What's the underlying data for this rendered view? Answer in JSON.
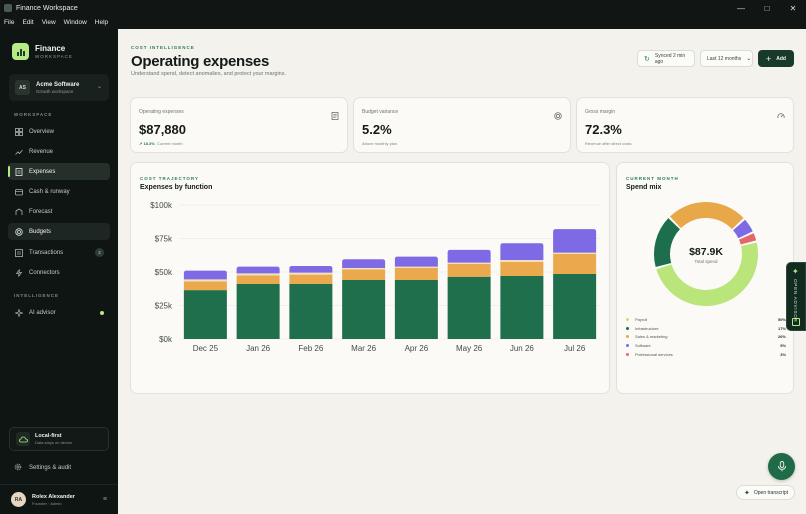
{
  "window": {
    "title": "Finance Workspace"
  },
  "menu": [
    "File",
    "Edit",
    "View",
    "Window",
    "Help"
  ],
  "brand": {
    "name": "Finance",
    "tagline": "WORKSPACE"
  },
  "org": {
    "initials": "AS",
    "name": "Acme Software",
    "plan": "Growth workspace"
  },
  "sidebar": {
    "workspace_label": "WORKSPACE",
    "items": [
      {
        "label": "Overview",
        "icon": "dashboard-icon"
      },
      {
        "label": "Revenue",
        "icon": "trend-icon"
      },
      {
        "label": "Expenses",
        "icon": "receipt-icon"
      },
      {
        "label": "Cash & runway",
        "icon": "wallet-icon"
      },
      {
        "label": "Forecast",
        "icon": "forecast-icon"
      },
      {
        "label": "Budgets",
        "icon": "target-icon"
      },
      {
        "label": "Transactions",
        "icon": "list-icon",
        "badge": "2"
      },
      {
        "label": "Connectors",
        "icon": "plug-icon"
      }
    ],
    "intelligence_label": "INTELLIGENCE",
    "ai_item": {
      "label": "AI advisor",
      "icon": "sparkle-icon"
    },
    "local_first": {
      "title": "Local-first",
      "subtitle": "Data stays on device"
    },
    "settings_label": "Settings & audit",
    "user": {
      "initials": "RA",
      "name": "Rolex Alexander",
      "role": "Founder · Admin"
    }
  },
  "header": {
    "eyebrow": "COST INTELLIGENCE",
    "title": "Operating expenses",
    "subtitle": "Understand spend, detect anomalies, and protect your margins.",
    "sync_label": "Synced 2 min ago",
    "range_label": "Last 12 months",
    "add_label": "Add"
  },
  "kpis": [
    {
      "label": "Operating expenses",
      "value": "$87,880",
      "delta": "18.3%",
      "note": "Current month",
      "icon": "document-icon"
    },
    {
      "label": "Budget variance",
      "value": "5.2%",
      "note": "Above monthly plan",
      "icon": "target-icon"
    },
    {
      "label": "Gross margin",
      "value": "72.3%",
      "note": "Revenue after direct costs",
      "icon": "gauge-icon"
    }
  ],
  "trajectory": {
    "eyebrow": "COST TRAJECTORY",
    "title": "Expenses by function"
  },
  "mix": {
    "eyebrow": "CURRENT MONTH",
    "title": "Spend mix",
    "center_value": "$87.9K",
    "center_label": "Total spend",
    "legend": [
      {
        "name": "Payroll",
        "pct": "50%",
        "color": "#b9e57b"
      },
      {
        "name": "Infrastructure",
        "pct": "17%",
        "color": "#1d6e4c"
      },
      {
        "name": "Sales & marketing",
        "pct": "26%",
        "color": "#e8a84a"
      },
      {
        "name": "Software",
        "pct": "5%",
        "color": "#7d6ae4"
      },
      {
        "name": "Professional services",
        "pct": "3%",
        "color": "#e5676b"
      }
    ]
  },
  "advisor_tab": "OPEN ADVISOR",
  "transcript_label": "Open transcript",
  "colors": {
    "accent": "#b5ea84",
    "primary": "#173a2b",
    "payroll": "#1d6e4c",
    "sales": "#e8a84a",
    "software": "#7d6ae4"
  },
  "chart_data": [
    {
      "type": "bar",
      "stacked": true,
      "categories": [
        "Dec 25",
        "Jan 26",
        "Feb 26",
        "Mar 26",
        "Apr 26",
        "May 26",
        "Jun 26",
        "Jul 26"
      ],
      "ylim": [
        0,
        100000
      ],
      "yticks": [
        "$0k",
        "$25k",
        "$50k",
        "$75k",
        "$100k"
      ],
      "ytick_values": [
        0,
        25000,
        50000,
        75000,
        100000
      ],
      "series": [
        {
          "color": "#1f6e4c",
          "values": [
            36500,
            41000,
            41000,
            44000,
            44000,
            46500,
            47000,
            48500
          ]
        },
        {
          "color": "#e9a94c",
          "values": [
            6500,
            6500,
            7000,
            8000,
            9000,
            9500,
            10500,
            15000
          ]
        },
        {
          "color": "#f1dfbd",
          "values": [
            1500,
            1500,
            1500,
            1000,
            1000,
            1000,
            1500,
            1000
          ]
        },
        {
          "color": "#7d6ae4",
          "values": [
            6500,
            5000,
            5000,
            6500,
            7500,
            9500,
            12500,
            17500
          ]
        }
      ],
      "grid": true
    },
    {
      "type": "pie",
      "donut": true,
      "categories": [
        "Payroll",
        "Infrastructure",
        "Sales & marketing",
        "Software",
        "Professional services"
      ],
      "values": [
        50,
        17,
        26,
        5,
        3
      ],
      "colors": [
        "#b9e57b",
        "#1d6e4c",
        "#e8a84a",
        "#7d6ae4",
        "#e5676b"
      ]
    }
  ]
}
